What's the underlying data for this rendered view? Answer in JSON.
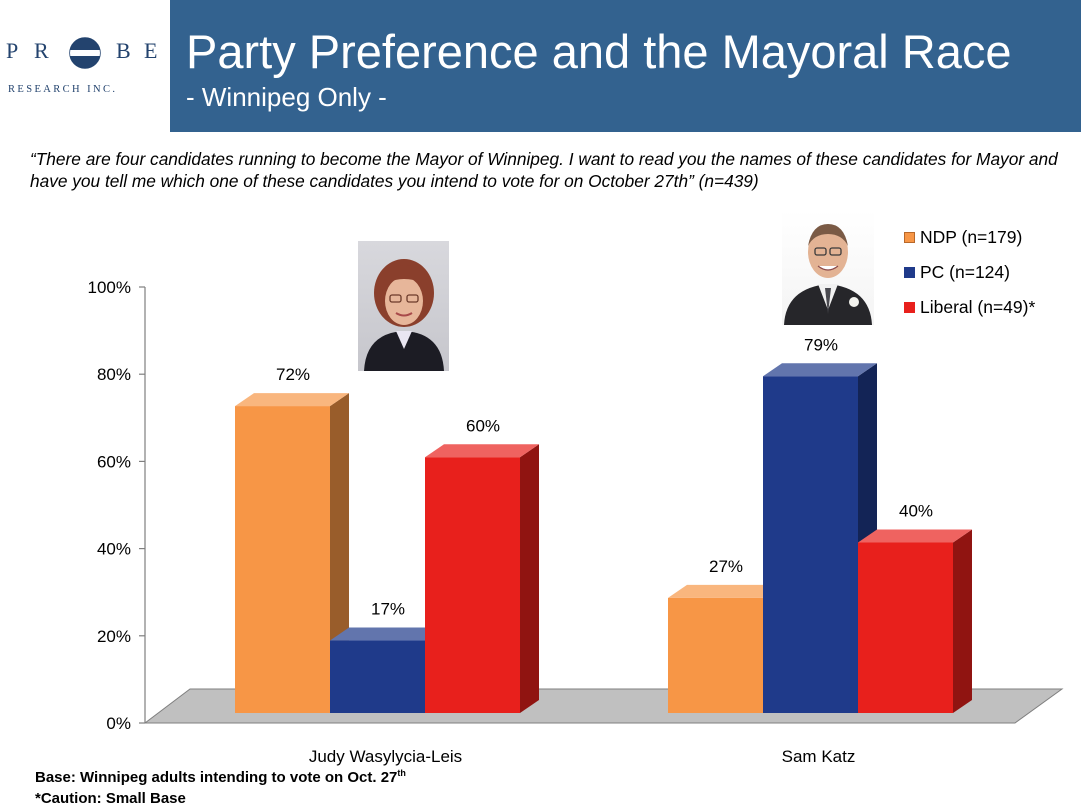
{
  "header": {
    "logo": {
      "letters": [
        "P",
        "R",
        "B",
        "E"
      ],
      "subtitle": "RESEARCH INC."
    },
    "title": "Party Preference and the Mayoral Race",
    "subtitle": "- Winnipeg Only -"
  },
  "question": "“There are four candidates running to become the Mayor of Winnipeg. I want to read you the names of these candidates for Mayor and have you tell me which one of these candidates you intend to vote for on October 27th” (n=439)",
  "chart_data": {
    "type": "bar",
    "categories": [
      "Judy Wasylycia-Leis",
      "Sam Katz"
    ],
    "series": [
      {
        "name": "NDP (n=179)",
        "values": [
          72,
          27
        ],
        "labels": [
          "72%",
          "27%"
        ],
        "color": "#f79646"
      },
      {
        "name": "PC (n=124)",
        "values": [
          17,
          79
        ],
        "labels": [
          "17%",
          "79%"
        ],
        "color": "#1f3a8a"
      },
      {
        "name": "Liberal (n=49)*",
        "values": [
          60,
          40
        ],
        "labels": [
          "60%",
          "40%"
        ],
        "color": "#e8201c"
      }
    ],
    "yticks": [
      "0%",
      "20%",
      "40%",
      "60%",
      "80%",
      "100%"
    ],
    "ylim": [
      0,
      100
    ],
    "legend": "top-right",
    "grid": false
  },
  "footnotes": {
    "base": "Base: Winnipeg adults intending to vote on Oct. 27",
    "base_sup": "th",
    "caution": "*Caution: Small Base"
  }
}
